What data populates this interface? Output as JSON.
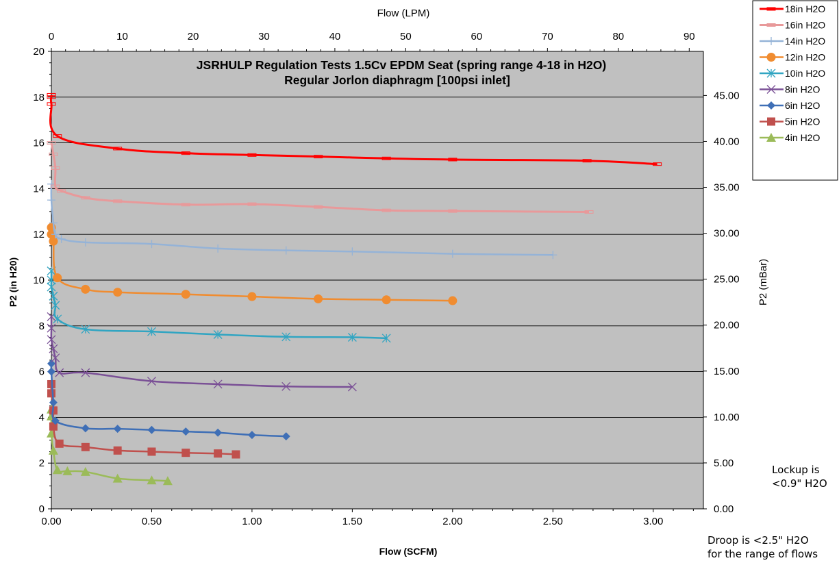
{
  "chart_data": {
    "type": "line",
    "title": [
      "JSRHULP Regulation Tests 1.5Cv EPDM Seat (spring range 4-18 in H2O)",
      "Regular Jorlon diaphragm [100psi inlet]"
    ],
    "xlabel": "Flow (SCFM)",
    "x2label": "Flow (LPM)",
    "ylabel": "P2 (in H20)",
    "y2label": "P2 (mBar)",
    "xlim": [
      0,
      3.25
    ],
    "ylim": [
      0,
      20
    ],
    "x2lim": [
      0,
      92.0
    ],
    "y2lim": [
      0,
      49.8
    ],
    "x_ticks": [
      "0.00",
      "0.50",
      "1.00",
      "1.50",
      "2.00",
      "2.50",
      "3.00"
    ],
    "y_ticks": [
      "0",
      "2",
      "4",
      "6",
      "8",
      "10",
      "12",
      "14",
      "16",
      "18",
      "20"
    ],
    "x2_ticks": [
      "0",
      "10",
      "20",
      "30",
      "40",
      "50",
      "60",
      "70",
      "80",
      "90"
    ],
    "y2_ticks": [
      "0.00",
      "5.00",
      "10.00",
      "15.00",
      "20.00",
      "25.00",
      "30.00",
      "35.00",
      "40.00",
      "45.00"
    ],
    "grid": "horizontal",
    "legend_position": "top-right",
    "plot_background": "#c0c0c0",
    "series": [
      {
        "name": "18in H2O",
        "color": "#ff0000",
        "marker": "dash",
        "width": 3,
        "points": [
          [
            0.0,
            18.1
          ],
          [
            0.0,
            18.0
          ],
          [
            0.0,
            17.7
          ],
          [
            0.03,
            16.3
          ],
          [
            0.33,
            15.75
          ],
          [
            0.67,
            15.55
          ],
          [
            1.0,
            15.47
          ],
          [
            1.33,
            15.4
          ],
          [
            1.67,
            15.32
          ],
          [
            2.0,
            15.27
          ],
          [
            2.67,
            15.22
          ],
          [
            3.02,
            15.07
          ]
        ]
      },
      {
        "name": "16in H2O",
        "color": "#e8999a",
        "marker": "dash",
        "width": 3,
        "points": [
          [
            0.0,
            16.0
          ],
          [
            0.01,
            15.5
          ],
          [
            0.02,
            14.9
          ],
          [
            0.02,
            14.1
          ],
          [
            0.05,
            13.9
          ],
          [
            0.17,
            13.6
          ],
          [
            0.33,
            13.45
          ],
          [
            0.67,
            13.3
          ],
          [
            1.0,
            13.32
          ],
          [
            1.33,
            13.2
          ],
          [
            1.67,
            13.05
          ],
          [
            2.0,
            13.02
          ],
          [
            2.68,
            12.98
          ]
        ]
      },
      {
        "name": "14in H2O",
        "color": "#95b3d7",
        "marker": "plus",
        "width": 2.5,
        "points": [
          [
            0.0,
            14.2
          ],
          [
            0.0,
            13.5
          ],
          [
            0.01,
            12.5
          ],
          [
            0.02,
            12.0
          ],
          [
            0.05,
            11.8
          ],
          [
            0.17,
            11.65
          ],
          [
            0.5,
            11.58
          ],
          [
            0.83,
            11.38
          ],
          [
            1.17,
            11.3
          ],
          [
            1.5,
            11.25
          ],
          [
            2.0,
            11.15
          ],
          [
            2.5,
            11.1
          ]
        ]
      },
      {
        "name": "12in H2O",
        "color": "#f08c30",
        "marker": "circle",
        "width": 2.5,
        "points": [
          [
            0.0,
            12.3
          ],
          [
            0.0,
            12.0
          ],
          [
            0.01,
            11.7
          ],
          [
            0.03,
            10.1
          ],
          [
            0.17,
            9.6
          ],
          [
            0.33,
            9.47
          ],
          [
            0.67,
            9.38
          ],
          [
            1.0,
            9.28
          ],
          [
            1.33,
            9.18
          ],
          [
            1.67,
            9.14
          ],
          [
            2.0,
            9.1
          ]
        ]
      },
      {
        "name": "10in H2O",
        "color": "#31a5c2",
        "marker": "star",
        "width": 2.5,
        "points": [
          [
            0.0,
            10.4
          ],
          [
            0.0,
            10.0
          ],
          [
            0.0,
            9.7
          ],
          [
            0.01,
            9.3
          ],
          [
            0.02,
            8.9
          ],
          [
            0.03,
            8.3
          ],
          [
            0.17,
            7.85
          ],
          [
            0.5,
            7.75
          ],
          [
            0.83,
            7.62
          ],
          [
            1.17,
            7.52
          ],
          [
            1.5,
            7.5
          ],
          [
            1.67,
            7.46
          ]
        ]
      },
      {
        "name": "8in H2O",
        "color": "#7a5096",
        "marker": "x",
        "width": 2.5,
        "points": [
          [
            0.0,
            8.4
          ],
          [
            0.0,
            7.9
          ],
          [
            0.0,
            7.4
          ],
          [
            0.01,
            7.0
          ],
          [
            0.02,
            6.6
          ],
          [
            0.04,
            5.95
          ],
          [
            0.17,
            5.95
          ],
          [
            0.5,
            5.58
          ],
          [
            0.83,
            5.45
          ],
          [
            1.17,
            5.35
          ],
          [
            1.5,
            5.33
          ]
        ]
      },
      {
        "name": "6in H2O",
        "color": "#3f6fb6",
        "marker": "diamond",
        "width": 2.5,
        "points": [
          [
            0.0,
            6.35
          ],
          [
            0.0,
            6.0
          ],
          [
            0.01,
            4.65
          ],
          [
            0.02,
            3.85
          ],
          [
            0.17,
            3.52
          ],
          [
            0.33,
            3.5
          ],
          [
            0.5,
            3.45
          ],
          [
            0.67,
            3.38
          ],
          [
            0.83,
            3.33
          ],
          [
            1.0,
            3.23
          ],
          [
            1.17,
            3.17
          ]
        ]
      },
      {
        "name": "5in H2O",
        "color": "#c0504d",
        "marker": "square",
        "width": 2.5,
        "points": [
          [
            0.0,
            5.45
          ],
          [
            0.0,
            5.05
          ],
          [
            0.01,
            4.3
          ],
          [
            0.01,
            3.6
          ],
          [
            0.04,
            2.85
          ],
          [
            0.17,
            2.7
          ],
          [
            0.33,
            2.55
          ],
          [
            0.5,
            2.5
          ],
          [
            0.67,
            2.45
          ],
          [
            0.83,
            2.42
          ],
          [
            0.92,
            2.38
          ]
        ]
      },
      {
        "name": "4in H2O",
        "color": "#9bbb59",
        "marker": "triangle",
        "width": 2.5,
        "points": [
          [
            0.0,
            4.35
          ],
          [
            0.0,
            4.05
          ],
          [
            0.0,
            3.3
          ],
          [
            0.01,
            2.55
          ],
          [
            0.03,
            1.7
          ],
          [
            0.08,
            1.65
          ],
          [
            0.17,
            1.62
          ],
          [
            0.33,
            1.33
          ],
          [
            0.5,
            1.25
          ],
          [
            0.58,
            1.22
          ]
        ]
      }
    ],
    "annotations": [
      "Lockup is",
      "<0.9\" H2O",
      "Droop is <2.5\" H2O",
      "for the range of flows"
    ]
  }
}
